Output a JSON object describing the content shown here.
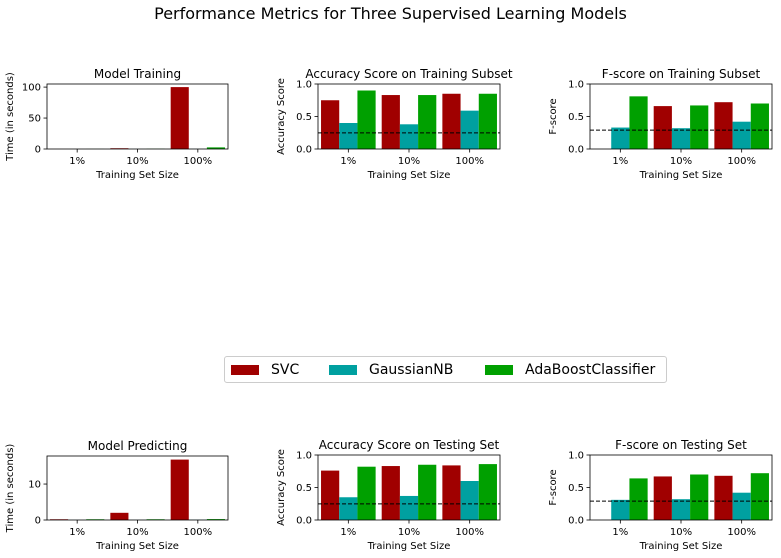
{
  "figure": {
    "title": "Performance Metrics for Three Supervised Learning Models"
  },
  "colors": {
    "SVC": "#a00000",
    "GaussianNB": "#00a0a0",
    "AdaBoostClassifier": "#00a000"
  },
  "legend": {
    "placement": "center",
    "items": [
      "SVC",
      "GaussianNB",
      "AdaBoostClassifier"
    ]
  },
  "chart_data": [
    {
      "type": "bar",
      "title": "Model Training",
      "xlabel": "Training Set Size",
      "ylabel": "Time (in seconds)",
      "categories": [
        "1%",
        "10%",
        "100%"
      ],
      "ylim": [
        0,
        105
      ],
      "yticks": [
        "0",
        "50",
        "100"
      ],
      "ytick_values": [
        0,
        50,
        100
      ],
      "series": [
        {
          "name": "SVC",
          "values": [
            0.02,
            1.2,
            100
          ]
        },
        {
          "name": "GaussianNB",
          "values": [
            0.0,
            0.01,
            0.1
          ]
        },
        {
          "name": "AdaBoostClassifier",
          "values": [
            0.1,
            0.3,
            2.6
          ]
        }
      ]
    },
    {
      "type": "bar",
      "title": "Accuracy Score on Training Subset",
      "xlabel": "Training Set Size",
      "ylabel": "Accuracy Score",
      "categories": [
        "1%",
        "10%",
        "100%"
      ],
      "ylim": [
        0,
        1
      ],
      "yticks": [
        "0.0",
        "0.5",
        "1.0"
      ],
      "ytick_values": [
        0,
        0.5,
        1.0
      ],
      "baseline": 0.248,
      "series": [
        {
          "name": "SVC",
          "values": [
            0.75,
            0.83,
            0.85
          ]
        },
        {
          "name": "GaussianNB",
          "values": [
            0.4,
            0.38,
            0.59
          ]
        },
        {
          "name": "AdaBoostClassifier",
          "values": [
            0.9,
            0.83,
            0.85
          ]
        }
      ]
    },
    {
      "type": "bar",
      "title": "F-score on Training Subset",
      "xlabel": "Training Set Size",
      "ylabel": "F-score",
      "categories": [
        "1%",
        "10%",
        "100%"
      ],
      "ylim": [
        0,
        1
      ],
      "yticks": [
        "0.0",
        "0.5",
        "1.0"
      ],
      "ytick_values": [
        0,
        0.5,
        1.0
      ],
      "baseline": 0.29,
      "series": [
        {
          "name": "SVC",
          "values": [
            0.0,
            0.66,
            0.72
          ]
        },
        {
          "name": "GaussianNB",
          "values": [
            0.33,
            0.32,
            0.42
          ]
        },
        {
          "name": "AdaBoostClassifier",
          "values": [
            0.81,
            0.67,
            0.7
          ]
        }
      ]
    },
    {
      "type": "bar",
      "title": "Model Predicting",
      "xlabel": "Training Set Size",
      "ylabel": "Time (in seconds)",
      "categories": [
        "1%",
        "10%",
        "100%"
      ],
      "ylim": [
        0,
        17.8
      ],
      "yticks": [
        "0",
        "10"
      ],
      "ytick_values": [
        0,
        10
      ],
      "series": [
        {
          "name": "SVC",
          "values": [
            0.2,
            2.0,
            16.8
          ]
        },
        {
          "name": "GaussianNB",
          "values": [
            0.02,
            0.03,
            0.06
          ]
        },
        {
          "name": "AdaBoostClassifier",
          "values": [
            0.2,
            0.2,
            0.25
          ]
        }
      ]
    },
    {
      "type": "bar",
      "title": "Accuracy Score on Testing Set",
      "xlabel": "Training Set Size",
      "ylabel": "Accuracy Score",
      "categories": [
        "1%",
        "10%",
        "100%"
      ],
      "ylim": [
        0,
        1
      ],
      "yticks": [
        "0.0",
        "0.5",
        "1.0"
      ],
      "ytick_values": [
        0,
        0.5,
        1.0
      ],
      "baseline": 0.248,
      "series": [
        {
          "name": "SVC",
          "values": [
            0.76,
            0.83,
            0.84
          ]
        },
        {
          "name": "GaussianNB",
          "values": [
            0.35,
            0.37,
            0.6
          ]
        },
        {
          "name": "AdaBoostClassifier",
          "values": [
            0.82,
            0.85,
            0.86
          ]
        }
      ]
    },
    {
      "type": "bar",
      "title": "F-score on Testing Set",
      "xlabel": "Training Set Size",
      "ylabel": "F-score",
      "categories": [
        "1%",
        "10%",
        "100%"
      ],
      "ylim": [
        0,
        1
      ],
      "yticks": [
        "0.0",
        "0.5",
        "1.0"
      ],
      "ytick_values": [
        0,
        0.5,
        1.0
      ],
      "baseline": 0.29,
      "series": [
        {
          "name": "SVC",
          "values": [
            0.0,
            0.67,
            0.68
          ]
        },
        {
          "name": "GaussianNB",
          "values": [
            0.31,
            0.32,
            0.42
          ]
        },
        {
          "name": "AdaBoostClassifier",
          "values": [
            0.64,
            0.7,
            0.72
          ]
        }
      ]
    }
  ]
}
